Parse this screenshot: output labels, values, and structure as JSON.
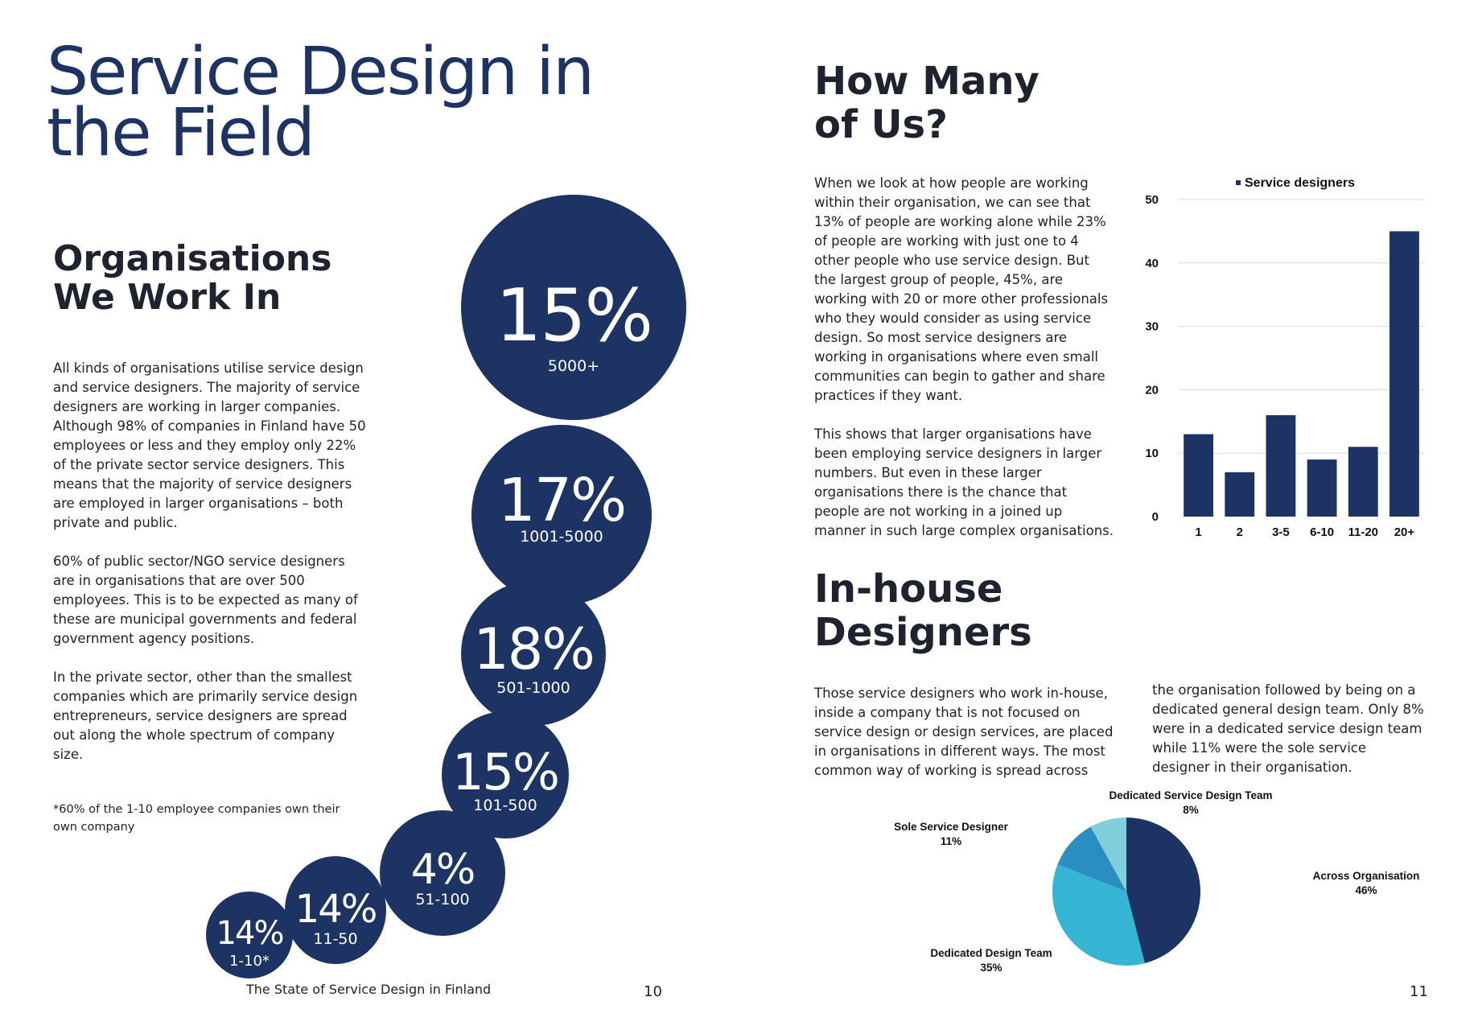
{
  "left_page": {
    "title": "Service Design in the Field",
    "section_title": "Organisations We Work In",
    "paragraphs": [
      "All kinds of organisations utilise service design and service designers. The majority of service designers are working in larger companies. Although 98% of companies in Finland have 50 employees or less and they employ only 22% of the private sector service designers. This means that the majority of service designers are employed in larger organisations – both private and public.",
      "60% of public sector/NGO service designers are in organisations that are over 500 employees. This is to be expected as many of these are municipal governments and federal government agency positions.",
      "In the private sector, other than the smallest companies which are primarily service design entrepreneurs, service designers are spread out along the whole spectrum of company size."
    ],
    "footnote": "*60% of the 1-10 employee companies own their own company",
    "bubbles": [
      {
        "percent": "15%",
        "range": "5000+",
        "value": 15
      },
      {
        "percent": "17%",
        "range": "1001-5000",
        "value": 17
      },
      {
        "percent": "18%",
        "range": "501-1000",
        "value": 18
      },
      {
        "percent": "15%",
        "range": "101-500",
        "value": 15
      },
      {
        "percent": "4%",
        "range": "51-100",
        "value": 4
      },
      {
        "percent": "14%",
        "range": "11-50",
        "value": 14
      },
      {
        "percent": "14%",
        "range": "1-10*",
        "value": 14
      }
    ],
    "footer": "The State of Service Design in Finland",
    "page_number": "10"
  },
  "right_page": {
    "section1_title": "How Many of Us?",
    "section1_paragraphs": [
      "When we look at how people are working within their organisation, we can see that 13% of people are working alone while 23% of people are working with just one to 4 other people who use service design. But the largest group of people, 45%, are working with 20 or more other professionals who they would consider as using service design. So most service designers are working in organisations where even small communities can begin to gather and share practices if they want.",
      "This shows that larger organisations have been employing service designers in larger numbers. But even in these larger organisations there is the chance that people are not working in a joined up manner in such large complex organisations."
    ],
    "section2_title": "In-house Designers",
    "section2_col1": "Those service designers who work in-house, inside a company that is not focused on service design or design services, are placed in organisations in different ways. The most common way of working is spread across",
    "section2_col2": "the organisation followed by being on a dedicated general design team. Only 8% were in a dedicated service design team while 11% were the sole service designer in their organisation.",
    "page_number": "11"
  },
  "chart_data": [
    {
      "type": "bar",
      "categories": [
        "1",
        "2",
        "3-5",
        "6-10",
        "11-20",
        "20+"
      ],
      "series": [
        {
          "name": "Service designers",
          "values": [
            13,
            7,
            16,
            9,
            11,
            45
          ]
        }
      ],
      "ylim": [
        0,
        50
      ],
      "yticks": [
        0,
        10,
        20,
        30,
        40,
        50
      ],
      "legend": "top",
      "grid": true,
      "color": "#1d3364"
    },
    {
      "type": "pie",
      "slices": [
        {
          "label": "Across Organisation",
          "value": 46,
          "value_label": "46%",
          "color": "#1d3364"
        },
        {
          "label": "Dedicated Design Team",
          "value": 35,
          "value_label": "35%",
          "color": "#35b4d4"
        },
        {
          "label": "Sole Service Designer",
          "value": 11,
          "value_label": "11%",
          "color": "#2a8fc0"
        },
        {
          "label": "Dedicated Service Design Team",
          "value": 8,
          "value_label": "8%",
          "color": "#7fd0dc"
        }
      ]
    }
  ]
}
